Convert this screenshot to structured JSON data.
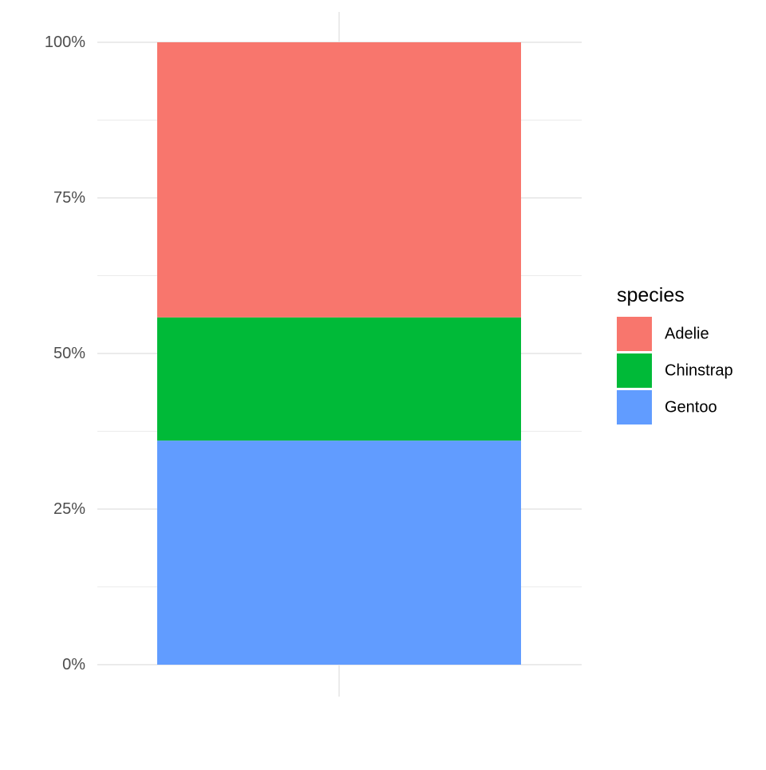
{
  "chart_data": {
    "type": "bar",
    "stacked": true,
    "position": "fill",
    "categories": [
      ""
    ],
    "series": [
      {
        "name": "Adelie",
        "values": [
          0.442
        ],
        "color": "#F8766D"
      },
      {
        "name": "Chinstrap",
        "values": [
          0.198
        ],
        "color": "#00BA38"
      },
      {
        "name": "Gentoo",
        "values": [
          0.36
        ],
        "color": "#619CFF"
      }
    ],
    "stack_order_bottom_to_top": [
      "Gentoo",
      "Chinstrap",
      "Adelie"
    ],
    "ylim": [
      0,
      1
    ],
    "y_ticks": [
      {
        "value": 0,
        "label": "0%"
      },
      {
        "value": 0.25,
        "label": "25%"
      },
      {
        "value": 0.5,
        "label": "50%"
      },
      {
        "value": 0.75,
        "label": "75%"
      },
      {
        "value": 1,
        "label": "100%"
      }
    ],
    "y_minor_ticks": [
      0.125,
      0.375,
      0.625,
      0.875
    ],
    "xlabel": "",
    "ylabel": "",
    "grid": true,
    "legend": {
      "title": "species",
      "placement": "right"
    },
    "colors": {
      "gridline": "#EBEBEB",
      "tick_text": "#4D4D4D",
      "background": "#FFFFFF"
    }
  }
}
